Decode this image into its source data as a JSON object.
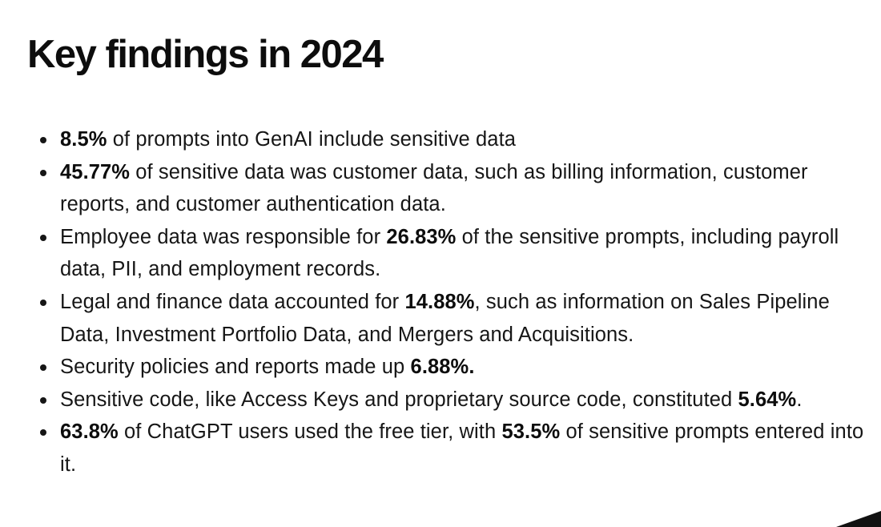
{
  "heading": "Key findings in 2024",
  "findings": [
    [
      {
        "text": "8.5%",
        "bold": true
      },
      {
        "text": " of prompts into GenAI include sensitive data",
        "bold": false
      }
    ],
    [
      {
        "text": "45.77%",
        "bold": true
      },
      {
        "text": " of sensitive data was customer data, such as billing information, customer reports, and customer authentication data.",
        "bold": false
      }
    ],
    [
      {
        "text": "Employee data was responsible for ",
        "bold": false
      },
      {
        "text": "26.83%",
        "bold": true
      },
      {
        "text": " of the sensitive prompts, including payroll data, PII, and employment records.",
        "bold": false
      }
    ],
    [
      {
        "text": "Legal and finance data accounted for ",
        "bold": false
      },
      {
        "text": "14.88%",
        "bold": true
      },
      {
        "text": ", such as information on Sales Pipeline Data, Investment Portfolio Data, and Mergers and Acquisitions.",
        "bold": false
      }
    ],
    [
      {
        "text": "Security policies and reports made up ",
        "bold": false
      },
      {
        "text": "6.88%.",
        "bold": true
      }
    ],
    [
      {
        "text": "Sensitive code, like Access Keys and proprietary source code, constituted ",
        "bold": false
      },
      {
        "text": "5.64%",
        "bold": true
      },
      {
        "text": ".",
        "bold": false
      }
    ],
    [
      {
        "text": "63.8%",
        "bold": true
      },
      {
        "text": " of ChatGPT users used the free tier, with ",
        "bold": false
      },
      {
        "text": "53.5%",
        "bold": true
      },
      {
        "text": " of sensitive prompts entered into it.",
        "bold": false
      }
    ]
  ],
  "colors": {
    "background": "#ffffff",
    "text": "#161616",
    "heading": "#0d0d0d",
    "corner": "#111111"
  }
}
